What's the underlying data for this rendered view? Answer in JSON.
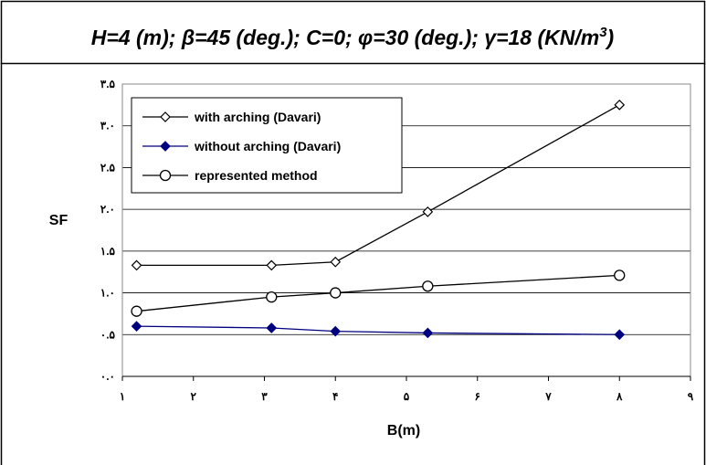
{
  "header": {
    "title_parts": [
      {
        "text": "H=4 (m); ",
        "sym": false
      },
      {
        "text": "β",
        "sym": true
      },
      {
        "text": "=45 (deg.); C=0; ",
        "sym": false
      },
      {
        "text": "φ",
        "sym": true
      },
      {
        "text": "=30 (deg.); ",
        "sym": false
      },
      {
        "text": "γ",
        "sym": true
      },
      {
        "text": "=18 (KN/m",
        "sym": false
      },
      {
        "text": "3",
        "sup": true
      },
      {
        "text": ")",
        "sym": false
      }
    ]
  },
  "colors": {
    "series_black": "#000000",
    "series_navy": "#00007f",
    "grid": "#000000",
    "background": "#ffffff"
  },
  "chart_data": {
    "type": "line",
    "xlabel": "B(m)",
    "ylabel": "SF",
    "xlim": [
      1,
      9
    ],
    "ylim": [
      0,
      3.5
    ],
    "x_ticks": [
      {
        "value": 1,
        "label": "١"
      },
      {
        "value": 2,
        "label": "٢"
      },
      {
        "value": 3,
        "label": "٣"
      },
      {
        "value": 4,
        "label": "۴"
      },
      {
        "value": 5,
        "label": "۵"
      },
      {
        "value": 6,
        "label": "۶"
      },
      {
        "value": 7,
        "label": "٧"
      },
      {
        "value": 8,
        "label": "٨"
      },
      {
        "value": 9,
        "label": "٩"
      }
    ],
    "y_ticks": [
      {
        "value": 0,
        "label": "٠.٠"
      },
      {
        "value": 0.5,
        "label": "٠.۵"
      },
      {
        "value": 1.0,
        "label": "١.٠"
      },
      {
        "value": 1.5,
        "label": "١.۵"
      },
      {
        "value": 2.0,
        "label": "٢.٠"
      },
      {
        "value": 2.5,
        "label": "٢.۵"
      },
      {
        "value": 3.0,
        "label": "٣.٠"
      },
      {
        "value": 3.5,
        "label": "٣.۵"
      }
    ],
    "grid": "horizontal",
    "legend_position": "top-left",
    "series": [
      {
        "name": "with arching (Davari)",
        "marker": "diamond-open",
        "color": "#000000",
        "x": [
          1.2,
          3.1,
          4.0,
          5.3,
          8.0
        ],
        "y": [
          1.33,
          1.33,
          1.37,
          1.97,
          3.25
        ]
      },
      {
        "name": "without arching (Davari)",
        "marker": "diamond-filled",
        "color": "#00007f",
        "x": [
          1.2,
          3.1,
          4.0,
          5.3,
          8.0
        ],
        "y": [
          0.6,
          0.58,
          0.54,
          0.52,
          0.5
        ]
      },
      {
        "name": "represented method",
        "marker": "circle-open",
        "color": "#000000",
        "x": [
          1.2,
          3.1,
          4.0,
          5.3,
          8.0
        ],
        "y": [
          0.78,
          0.95,
          1.0,
          1.08,
          1.21
        ]
      }
    ]
  }
}
